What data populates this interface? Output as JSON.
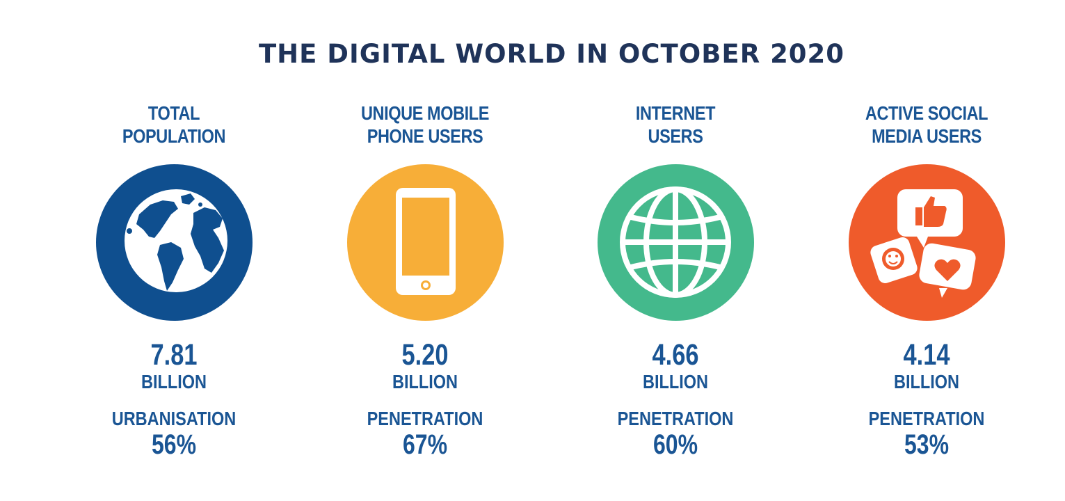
{
  "title": "THE DIGITAL WORLD IN OCTOBER 2020",
  "colors": {
    "text": "#1a5594",
    "title": "#1f3359",
    "population": "#0f4f8f",
    "mobile": "#f7ae38",
    "internet": "#44b98c",
    "social": "#ef5b2b"
  },
  "stats": [
    {
      "label_line1": "TOTAL",
      "label_line2": "POPULATION",
      "icon": "globe-earth-icon",
      "value": "7.81",
      "unit": "BILLION",
      "sublabel": "URBANISATION",
      "subvalue": "56%"
    },
    {
      "label_line1": "UNIQUE MOBILE",
      "label_line2": "PHONE USERS",
      "icon": "mobile-phone-icon",
      "value": "5.20",
      "unit": "BILLION",
      "sublabel": "PENETRATION",
      "subvalue": "67%"
    },
    {
      "label_line1": "INTERNET",
      "label_line2": "USERS",
      "icon": "internet-globe-icon",
      "value": "4.66",
      "unit": "BILLION",
      "sublabel": "PENETRATION",
      "subvalue": "60%"
    },
    {
      "label_line1": "ACTIVE SOCIAL",
      "label_line2": "MEDIA USERS",
      "icon": "social-media-icon",
      "value": "4.14",
      "unit": "BILLION",
      "sublabel": "PENETRATION",
      "subvalue": "53%"
    }
  ]
}
